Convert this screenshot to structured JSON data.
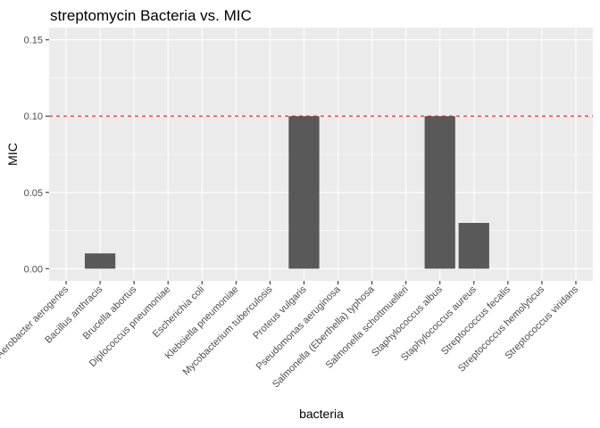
{
  "chart_data": {
    "type": "bar",
    "title": "streptomycin Bacteria vs. MIC",
    "xlabel": "bacteria",
    "ylabel": "MIC",
    "ylim": [
      -0.008,
      0.158
    ],
    "yticks": [
      0.0,
      0.05,
      0.1,
      0.15
    ],
    "ytick_labels": [
      "0.00",
      "0.05",
      "0.10",
      "0.15"
    ],
    "grid": true,
    "reference_line": {
      "y": 0.1,
      "style": "dashed",
      "color": "#e31a1c"
    },
    "categories": [
      "Aerobacter aerogenes",
      "Bacillus anthracis",
      "Brucella abortus",
      "Diplococcus pneumoniae",
      "Escherichia coli",
      "Klebsiella pneumoniae",
      "Mycobacterium tuberculosis",
      "Proteus vulgaris",
      "Pseudomonas aeruginosa",
      "Salmonella (Eberthella) typhosa",
      "Salmonella schottmuelleri",
      "Staphylococcus albus",
      "Staphylococcus aureus",
      "Streptococcus fecalis",
      "Streptococcus hemolyticus",
      "Streptococcus viridans"
    ],
    "values": [
      0,
      0.01,
      0,
      0,
      0,
      0,
      0,
      0.1,
      0,
      0,
      0,
      0.1,
      0.03,
      0,
      0,
      0
    ],
    "colors": {
      "bar": "#595959",
      "panel": "#ebebeb",
      "grid": "#ffffff"
    }
  }
}
